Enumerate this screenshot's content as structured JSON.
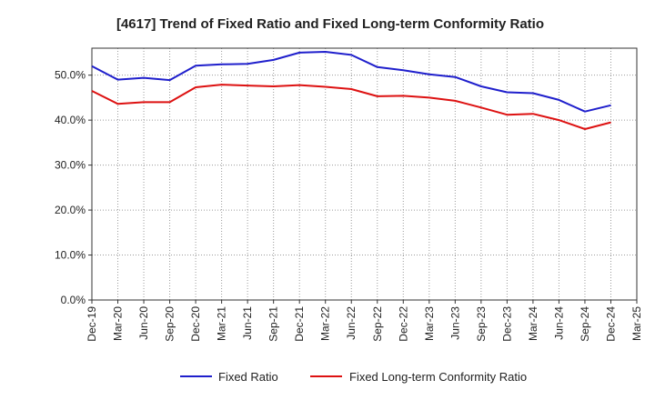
{
  "chart_data": {
    "type": "line",
    "title": "[4617]  Trend of Fixed Ratio and Fixed Long-term Conformity Ratio",
    "xlabel": "",
    "ylabel": "",
    "categories": [
      "Dec-19",
      "Mar-20",
      "Jun-20",
      "Sep-20",
      "Dec-20",
      "Mar-21",
      "Jun-21",
      "Sep-21",
      "Dec-21",
      "Mar-22",
      "Jun-22",
      "Sep-22",
      "Dec-22",
      "Mar-23",
      "Jun-23",
      "Sep-23",
      "Dec-23",
      "Mar-24",
      "Jun-24",
      "Sep-24",
      "Dec-24",
      "Mar-25"
    ],
    "yticks": [
      "0.0%",
      "10.0%",
      "20.0%",
      "30.0%",
      "40.0%",
      "50.0%"
    ],
    "ylim": [
      0,
      56
    ],
    "grid": true,
    "legend_position": "bottom",
    "series": [
      {
        "name": "Fixed Ratio",
        "color": "#1f1fcc",
        "values": [
          52.0,
          49.0,
          49.4,
          48.9,
          52.1,
          52.4,
          52.5,
          53.4,
          55.0,
          55.2,
          54.5,
          51.8,
          51.1,
          50.2,
          49.6,
          47.5,
          46.2,
          46.0,
          44.5,
          41.9,
          43.3,
          null
        ]
      },
      {
        "name": "Fixed Long-term Conformity Ratio",
        "color": "#dd1111",
        "values": [
          46.5,
          43.6,
          44.0,
          44.0,
          47.3,
          47.9,
          47.7,
          47.5,
          47.8,
          47.4,
          46.9,
          45.3,
          45.4,
          45.0,
          44.3,
          42.8,
          41.2,
          41.4,
          40.0,
          38.0,
          39.5,
          null
        ]
      }
    ]
  }
}
